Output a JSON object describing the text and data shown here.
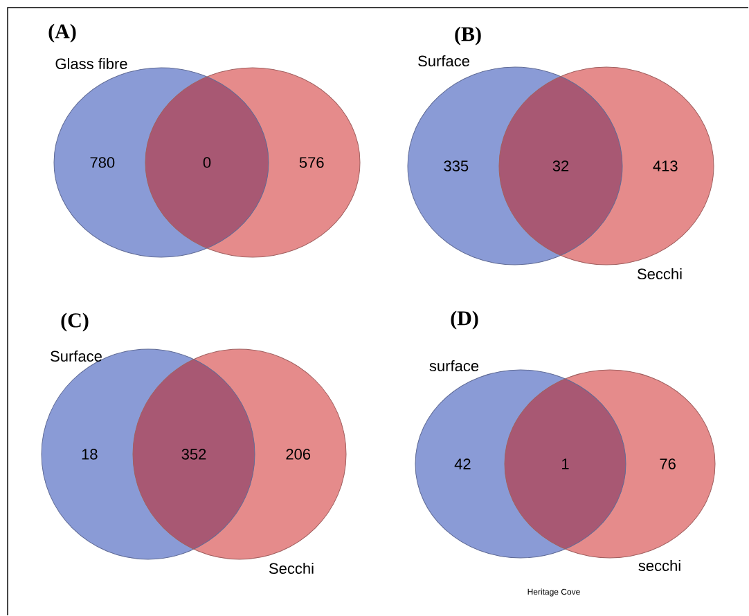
{
  "chart_data": [
    {
      "type": "other",
      "title": "(A)",
      "categories": [
        "Glass fibre",
        null,
        null
      ],
      "values": [
        780,
        0,
        576
      ],
      "colors": [
        "#8a9bd6",
        "#a85873",
        "#e58b8b"
      ],
      "data_labels": true
    },
    {
      "type": "other",
      "title": "(B)",
      "categories": [
        "Surface",
        null,
        "Secchi"
      ],
      "values": [
        335,
        32,
        413
      ],
      "colors": [
        "#8a9bd6",
        "#a85873",
        "#e58b8b"
      ],
      "data_labels": true
    },
    {
      "type": "other",
      "title": "(C)",
      "categories": [
        "Surface",
        null,
        "Secchi"
      ],
      "values": [
        18,
        352,
        206
      ],
      "colors": [
        "#8a9bd6",
        "#a85873",
        "#e58b8b"
      ],
      "data_labels": true
    },
    {
      "type": "other",
      "title": "(D)",
      "categories": [
        "surface",
        null,
        "secchi"
      ],
      "values": [
        42,
        1,
        76
      ],
      "colors": [
        "#8a9bd6",
        "#a85873",
        "#e58b8b"
      ],
      "data_labels": true,
      "annotations": [
        "Heritage Cove"
      ]
    }
  ]
}
